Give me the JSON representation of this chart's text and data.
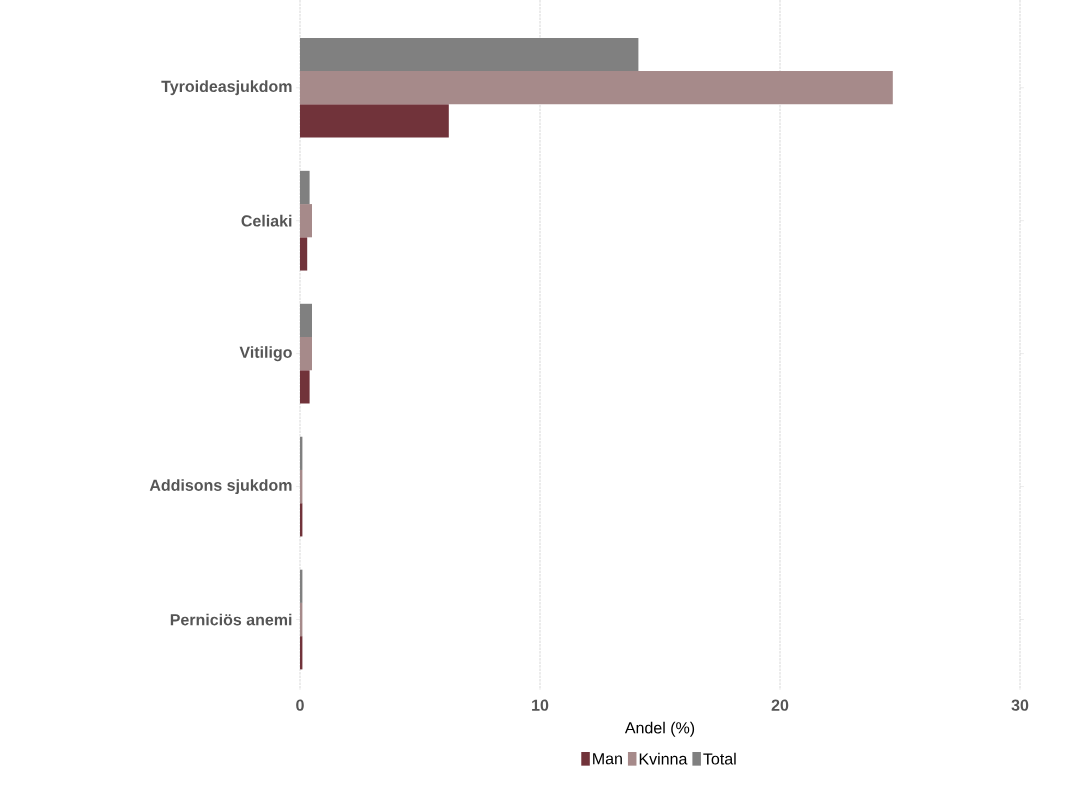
{
  "chart_data": {
    "type": "bar",
    "orientation": "horizontal",
    "xlabel": "Andel (%)",
    "categories": [
      "Tyroideasjukdom",
      "Celiaki",
      "Vitiligo",
      "Addisons sjukdom",
      "Perniciös anemi"
    ],
    "series": [
      {
        "name": "Man",
        "color": "#71333a",
        "values": [
          6.2,
          0.3,
          0.4,
          0.1,
          0.1
        ]
      },
      {
        "name": "Kvinna",
        "color": "#a68a8a",
        "values": [
          24.7,
          0.5,
          0.5,
          0.1,
          0.1
        ]
      },
      {
        "name": "Total",
        "color": "#808080",
        "values": [
          14.1,
          0.4,
          0.5,
          0.1,
          0.1
        ]
      }
    ],
    "xlim": [
      0,
      30
    ],
    "xticks": [
      0,
      10,
      20,
      30
    ],
    "grid": "x",
    "legend": "bottom"
  }
}
